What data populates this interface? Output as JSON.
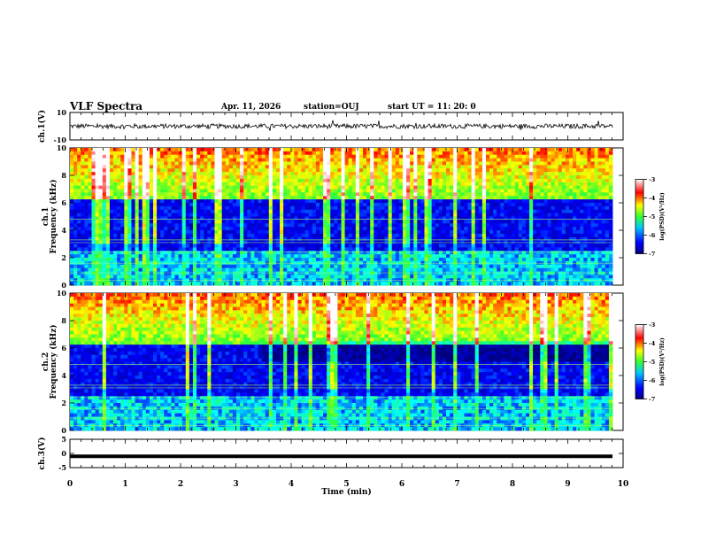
{
  "header": {
    "title": "VLF Spectra",
    "date": "Apr. 11, 2026",
    "station": "station=OUJ",
    "start": "start  UT =  11: 20: 0"
  },
  "chart_data": [
    {
      "type": "line",
      "name": "ch1-waveform",
      "ylabel": "ch.1(V)",
      "yticks": [
        "10",
        "-10"
      ],
      "ylim": [
        -10,
        10
      ],
      "description_of_series": "broadband waveform, amplitude ~±2 V with spikes to ~±6 V"
    },
    {
      "type": "heatmap",
      "name": "ch1-spectrogram",
      "ylabel": "ch.1\nFrequency (kHz)",
      "ylabel_line1": "ch.1",
      "ylabel_line2": "Frequency (kHz)",
      "yticks": [
        "0",
        "2",
        "4",
        "6",
        "8",
        "10"
      ],
      "ylim": [
        0,
        10
      ],
      "colorbar": {
        "label": "log(PSD)(V²/Hz)",
        "ticks": [
          "-3",
          "-4",
          "-5",
          "-6",
          "-7"
        ],
        "range": [
          -7,
          -3
        ]
      }
    },
    {
      "type": "heatmap",
      "name": "ch2-spectrogram",
      "ylabel_line1": "ch.2",
      "ylabel_line2": "Frequency (kHz)",
      "yticks": [
        "0",
        "2",
        "4",
        "6",
        "8",
        "10"
      ],
      "ylim": [
        0,
        10
      ],
      "colorbar": {
        "label": "log(PSD)(V²/Hz)",
        "ticks": [
          "-3",
          "-4",
          "-5",
          "-6",
          "-7"
        ],
        "range": [
          -7,
          -3
        ]
      }
    },
    {
      "type": "line",
      "name": "ch3-waveform",
      "ylabel": "ch.3(V)",
      "yticks": [
        "5",
        "0",
        "-5"
      ],
      "ylim": [
        -5,
        5
      ],
      "constant_value": -1
    }
  ],
  "xaxis": {
    "label": "Time  (min)",
    "ticks": [
      "0",
      "1",
      "2",
      "3",
      "4",
      "5",
      "6",
      "7",
      "8",
      "9",
      "10"
    ],
    "xlim": [
      0,
      10
    ]
  },
  "colors": {
    "colormap": [
      "#00007f",
      "#0000ff",
      "#00ffff",
      "#33ff33",
      "#ffff00",
      "#ff0000",
      "#ffffff"
    ]
  }
}
